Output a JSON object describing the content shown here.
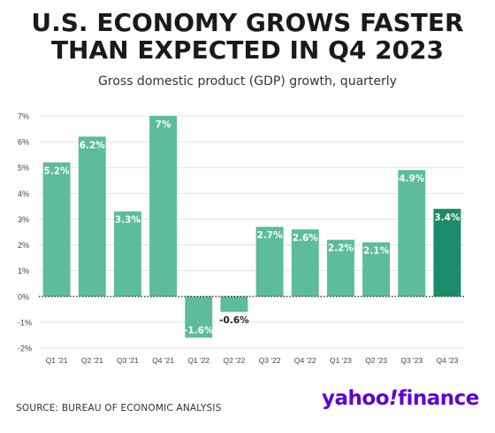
{
  "title_line1": "U.S. ECONOMY GROWS FASTER",
  "title_line2": "THAN EXPECTED IN Q4 2023",
  "subtitle": "Gross domestic product (GDP) growth, quarterly",
  "source": "SOURCE: BUREAU OF ECONOMIC ANALYSIS",
  "logo": {
    "part1": "yahoo",
    "slash": "!",
    "part2": "finance"
  },
  "colors": {
    "bar": "#5cbc9c",
    "highlight": "#1a8c6a",
    "grid": "#e2e2e2",
    "zero_line": "#222222",
    "logo": "#5f01d1"
  },
  "chart_data": {
    "type": "bar",
    "title": "U.S. ECONOMY GROWS FASTER THAN EXPECTED IN Q4 2023",
    "subtitle": "Gross domestic product (GDP) growth, quarterly",
    "categories": [
      "Q1 '21",
      "Q2 '21",
      "Q3 '21",
      "Q4 '21",
      "Q1 '22",
      "Q2 '22",
      "Q3 '22",
      "Q4 '22",
      "Q1 '23",
      "Q2 '23",
      "Q3 '23",
      "Q4 '23"
    ],
    "values": [
      5.2,
      6.2,
      3.3,
      7,
      -1.6,
      -0.6,
      2.7,
      2.6,
      2.2,
      2.1,
      4.9,
      3.4
    ],
    "value_labels": [
      "5.2%",
      "6.2%",
      "3.3%",
      "7%",
      "-1.6%",
      "-0.6%",
      "2.7%",
      "2.6%",
      "2.2%",
      "2.1%",
      "4.9%",
      "3.4%"
    ],
    "highlight_index": 11,
    "ylim": [
      -2,
      7
    ],
    "yticks": [
      7,
      6,
      5,
      4,
      3,
      2,
      1,
      0,
      -1,
      -2
    ],
    "ytick_labels": [
      "7%",
      "6%",
      "5%",
      "4%",
      "3%",
      "2%",
      "1%",
      "0%",
      "-1%",
      "-2%"
    ],
    "grid": true,
    "xlabel": "",
    "ylabel": ""
  }
}
